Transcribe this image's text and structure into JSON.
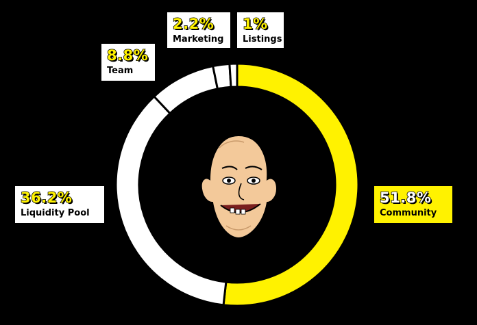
{
  "chart_data": {
    "type": "pie",
    "donut": true,
    "title": "",
    "slices": [
      {
        "label": "Community",
        "value": 51.8,
        "display": "51.8%",
        "color": "#fff200"
      },
      {
        "label": "Liquidity Pool",
        "value": 36.2,
        "display": "36.2%",
        "color": "#ffffff"
      },
      {
        "label": "Team",
        "value": 8.8,
        "display": "8.8%",
        "color": "#ffffff"
      },
      {
        "label": "Marketing",
        "value": 2.2,
        "display": "2.2%",
        "color": "#ffffff"
      },
      {
        "label": "Listings",
        "value": 1.0,
        "display": "1%",
        "color": "#ffffff"
      }
    ],
    "start_angle": "12 o'clock",
    "direction": "clockwise",
    "center_image": "cartoon-bald-head-face",
    "colors": {
      "background": "#000000",
      "outline": "#000000",
      "highlight": "#fff200"
    }
  }
}
